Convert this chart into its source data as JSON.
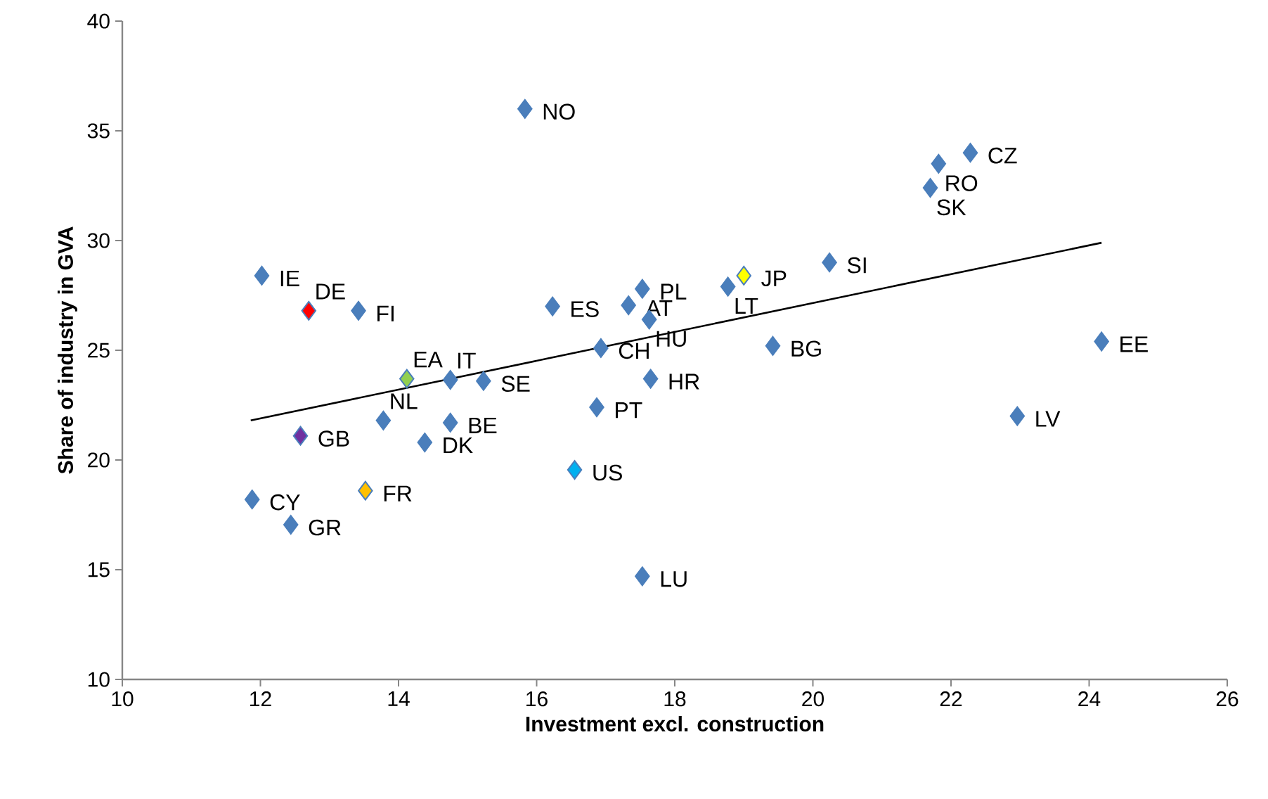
{
  "chart_data": {
    "type": "scatter",
    "xlabel": "Investment excl. construction",
    "ylabel": "Share of industry in GVA",
    "xlim": [
      10,
      26
    ],
    "ylim": [
      10,
      40
    ],
    "xticks": [
      10,
      12,
      14,
      16,
      18,
      20,
      22,
      24,
      26
    ],
    "yticks": [
      10,
      15,
      20,
      25,
      30,
      35,
      40
    ],
    "marker": "diamond",
    "series": [
      {
        "color": "#4a7ebb",
        "x": [
          12.02,
          12.7,
          13.42,
          14.12,
          14.75,
          15.23,
          12.58,
          13.78,
          14.75,
          14.38,
          11.88,
          12.44,
          13.52,
          16.55,
          17.53,
          15.83,
          16.23,
          17.53,
          17.33,
          17.63,
          16.93,
          17.65,
          16.87,
          19.42,
          18.77,
          19.0,
          20.24,
          21.82,
          22.28,
          21.7,
          24.18,
          22.96
        ],
        "values": [
          28.4,
          26.8,
          26.8,
          23.7,
          23.65,
          23.6,
          21.1,
          21.8,
          21.7,
          20.8,
          18.2,
          17.05,
          18.6,
          19.55,
          14.7,
          36.0,
          27.0,
          27.8,
          27.05,
          26.4,
          25.1,
          23.7,
          22.4,
          25.2,
          27.9,
          28.4,
          29.0,
          33.5,
          34.0,
          32.4,
          25.4,
          22.0
        ],
        "colors": [
          "#4a7ebb",
          "#ff0000",
          "#4a7ebb",
          "#92d050",
          "#4a7ebb",
          "#4a7ebb",
          "#7030a0",
          "#4a7ebb",
          "#4a7ebb",
          "#4a7ebb",
          "#4a7ebb",
          "#4a7ebb",
          "#ffc000",
          "#00b0f0",
          "#4a7ebb",
          "#4a7ebb",
          "#4a7ebb",
          "#4a7ebb",
          "#4a7ebb",
          "#4a7ebb",
          "#4a7ebb",
          "#4a7ebb",
          "#4a7ebb",
          "#4a7ebb",
          "#4a7ebb",
          "#ffff00",
          "#4a7ebb",
          "#4a7ebb",
          "#4a7ebb",
          "#4a7ebb",
          "#4a7ebb",
          "#4a7ebb"
        ]
      },
      {
        "type": "line",
        "marker": "none",
        "color": "#000000",
        "x": [
          11.86,
          24.18
        ],
        "values": [
          21.8,
          29.9
        ]
      }
    ],
    "annotations": [
      {
        "text": "IE",
        "x": 12.02,
        "y": 28.4
      },
      {
        "text": "DE",
        "x": 12.7,
        "y": 26.8
      },
      {
        "text": "FI",
        "x": 13.42,
        "y": 26.8
      },
      {
        "text": "EA",
        "x": 14.12,
        "y": 23.7
      },
      {
        "text": "IT",
        "x": 14.75,
        "y": 23.65
      },
      {
        "text": "SE",
        "x": 15.23,
        "y": 23.6
      },
      {
        "text": "GB",
        "x": 12.58,
        "y": 21.1
      },
      {
        "text": "NL",
        "x": 13.78,
        "y": 21.8
      },
      {
        "text": "BE",
        "x": 14.75,
        "y": 21.7
      },
      {
        "text": "DK",
        "x": 14.38,
        "y": 20.8
      },
      {
        "text": "CY",
        "x": 11.88,
        "y": 18.2
      },
      {
        "text": "GR",
        "x": 12.44,
        "y": 17.05
      },
      {
        "text": "FR",
        "x": 13.52,
        "y": 18.6
      },
      {
        "text": "US",
        "x": 16.55,
        "y": 19.55
      },
      {
        "text": "LU",
        "x": 17.53,
        "y": 14.7
      },
      {
        "text": "NO",
        "x": 15.83,
        "y": 36.0
      },
      {
        "text": "ES",
        "x": 16.23,
        "y": 27.0
      },
      {
        "text": "PL",
        "x": 17.53,
        "y": 27.8
      },
      {
        "text": "AT",
        "x": 17.33,
        "y": 27.05
      },
      {
        "text": "HU",
        "x": 17.63,
        "y": 26.4
      },
      {
        "text": "CH",
        "x": 16.93,
        "y": 25.1
      },
      {
        "text": "HR",
        "x": 17.65,
        "y": 23.7
      },
      {
        "text": "PT",
        "x": 16.87,
        "y": 22.4
      },
      {
        "text": "BG",
        "x": 19.42,
        "y": 25.2
      },
      {
        "text": "LT",
        "x": 18.77,
        "y": 27.9
      },
      {
        "text": "JP",
        "x": 19.0,
        "y": 28.4
      },
      {
        "text": "SI",
        "x": 20.24,
        "y": 29.0
      },
      {
        "text": "RO",
        "x": 21.82,
        "y": 33.5
      },
      {
        "text": "CZ",
        "x": 22.28,
        "y": 34.0
      },
      {
        "text": "SK",
        "x": 21.7,
        "y": 32.4
      },
      {
        "text": "EE",
        "x": 24.18,
        "y": 25.4
      },
      {
        "text": "LV",
        "x": 22.96,
        "y": 22.0
      }
    ]
  }
}
